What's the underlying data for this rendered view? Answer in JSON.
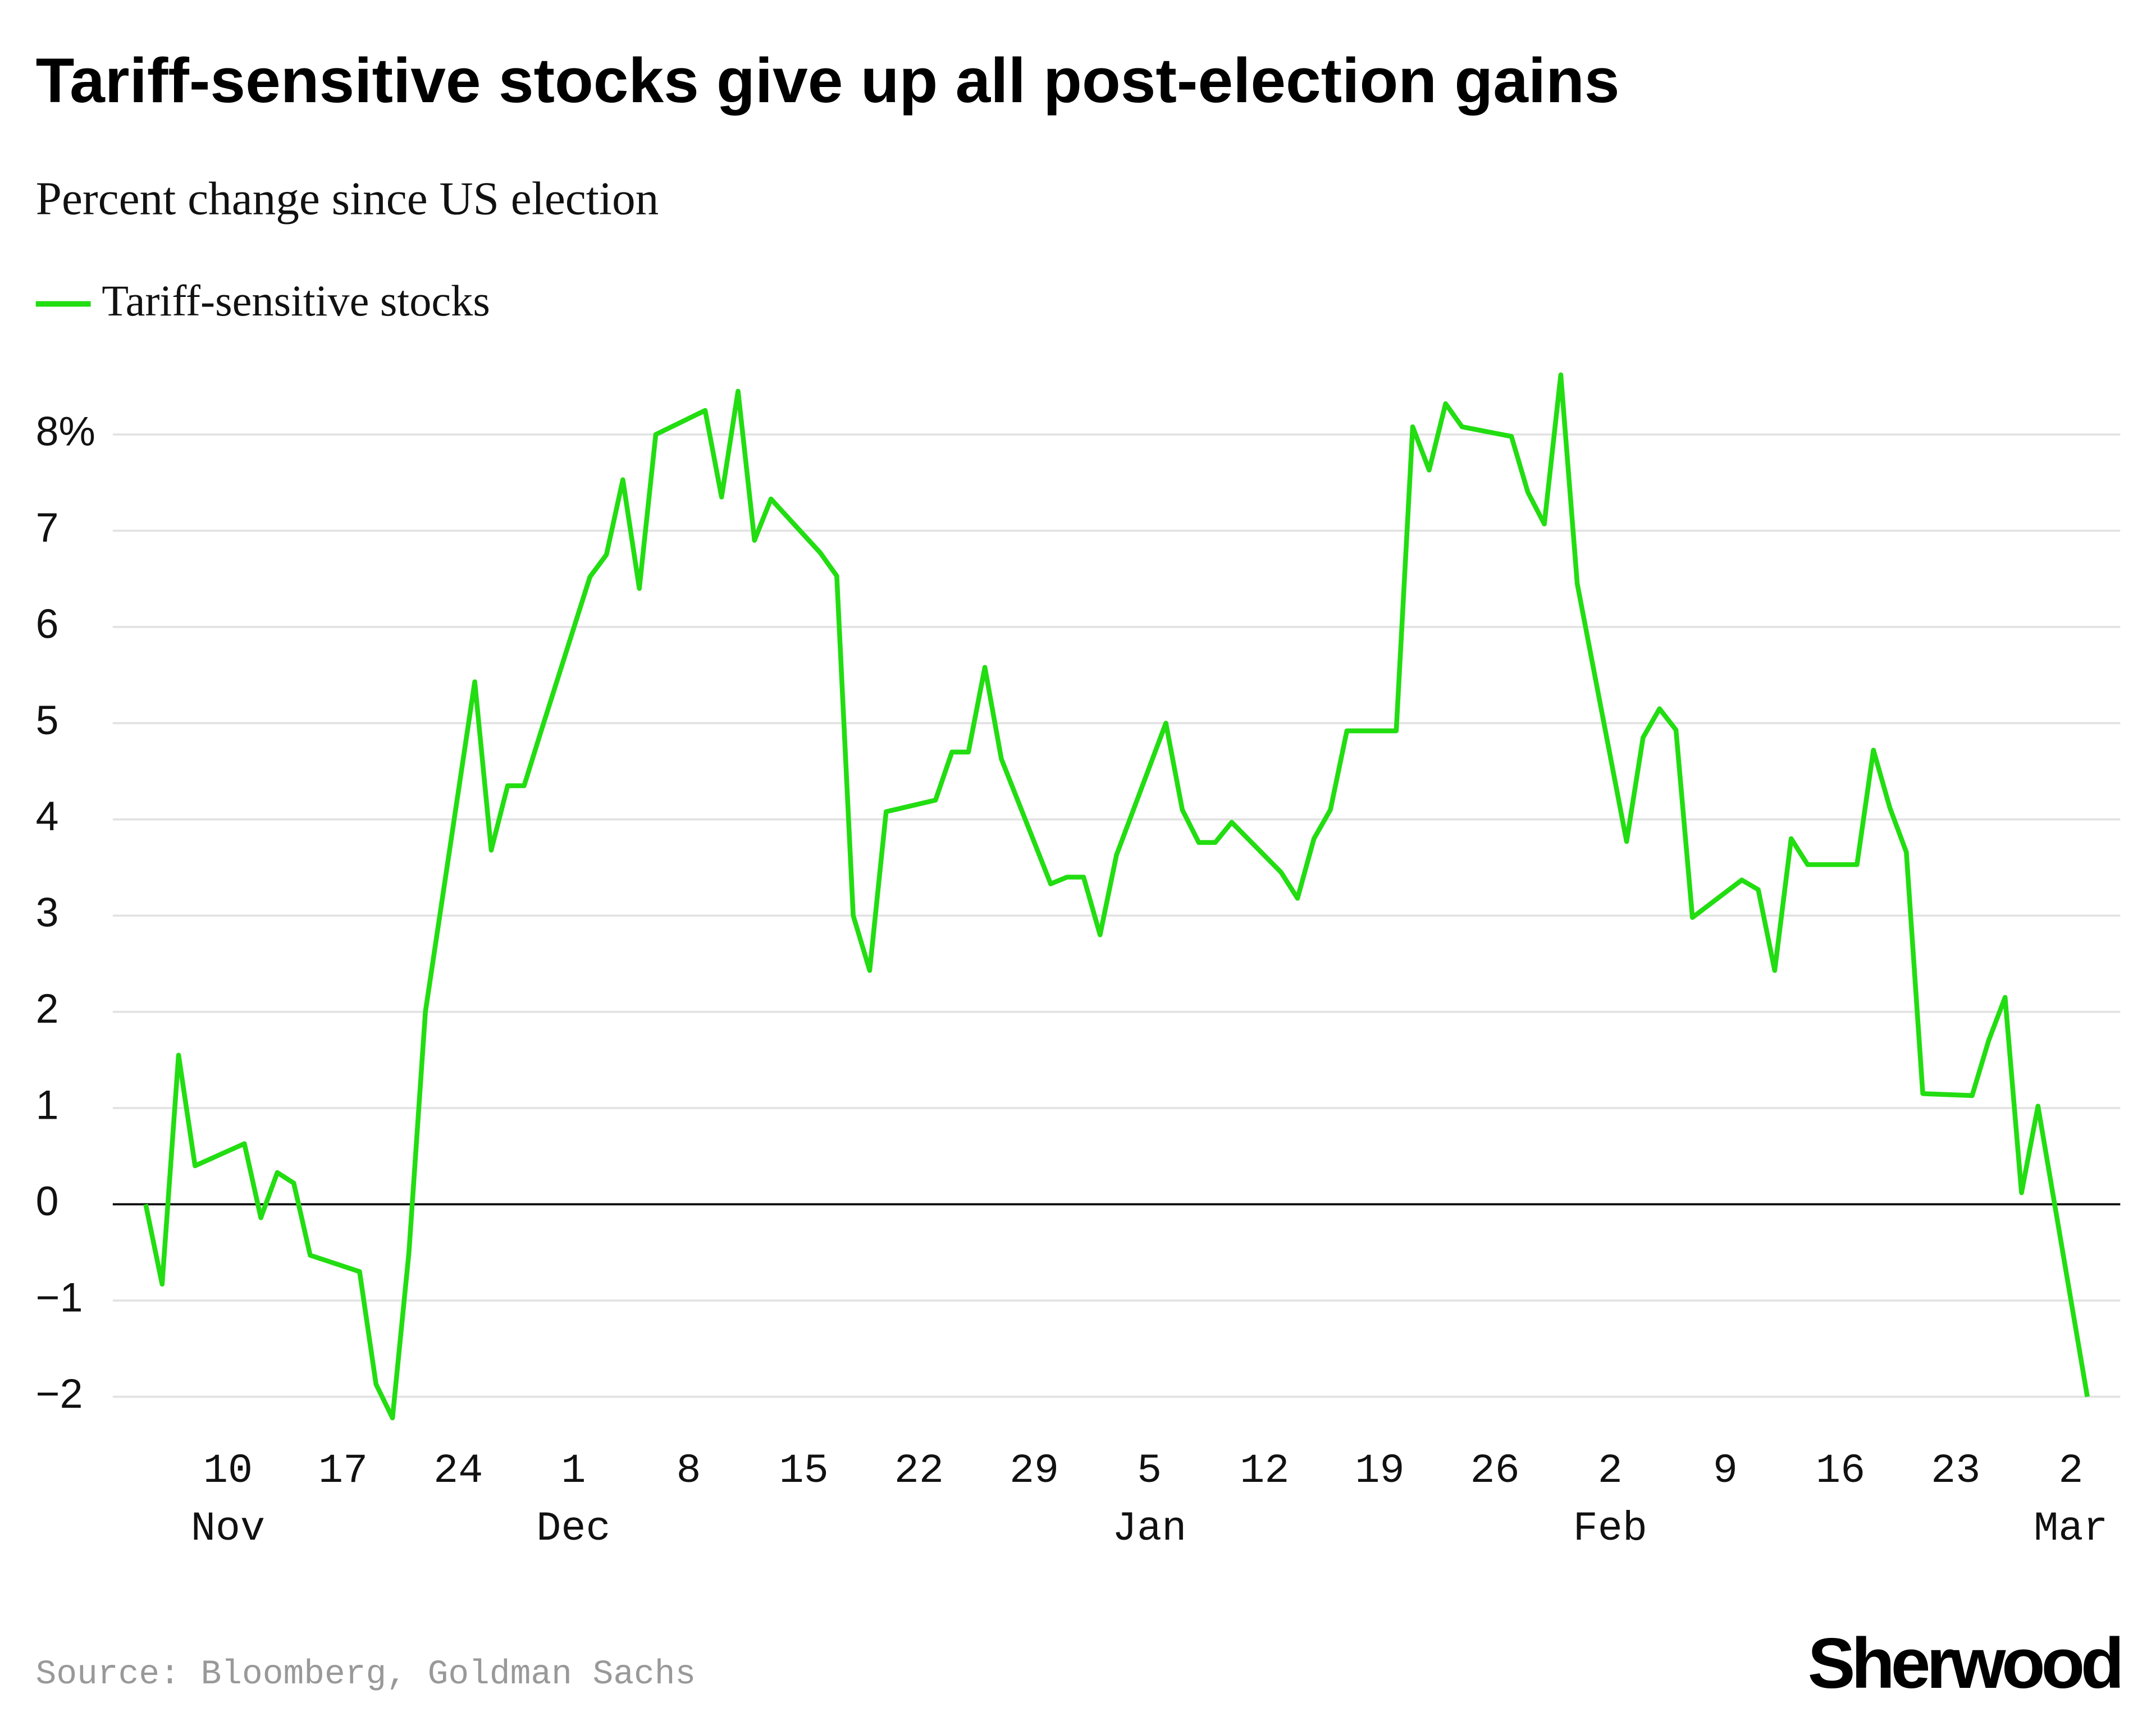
{
  "chart_data": {
    "type": "line",
    "title": "Tariff-sensitive stocks give up all post-election gains",
    "subtitle": "Percent change since US election",
    "source": "Source: Bloomberg, Goldman Sachs",
    "brand": "Sherwood",
    "x": [
      "11-05",
      "11-06",
      "11-07",
      "11-08",
      "11-11",
      "11-12",
      "11-13",
      "11-14",
      "11-15",
      "11-18",
      "11-19",
      "11-20",
      "11-21",
      "11-22",
      "11-25",
      "11-26",
      "11-27",
      "11-28",
      "11-29",
      "12-02",
      "12-03",
      "12-04",
      "12-05",
      "12-06",
      "12-09",
      "12-10",
      "12-11",
      "12-12",
      "12-13",
      "12-16",
      "12-17",
      "12-18",
      "12-19",
      "12-20",
      "12-23",
      "12-24",
      "12-25",
      "12-26",
      "12-27",
      "12-30",
      "12-31",
      "01-01",
      "01-02",
      "01-03",
      "01-06",
      "01-07",
      "01-08",
      "01-09",
      "01-10",
      "01-13",
      "01-14",
      "01-15",
      "01-16",
      "01-17",
      "01-20",
      "01-21",
      "01-22",
      "01-23",
      "01-24",
      "01-27",
      "01-28",
      "01-29",
      "01-30",
      "01-31",
      "02-03",
      "02-04",
      "02-05",
      "02-06",
      "02-07",
      "02-10",
      "02-11",
      "02-12",
      "02-13",
      "02-14",
      "02-17",
      "02-18",
      "02-19",
      "02-20",
      "02-21",
      "02-24",
      "02-25",
      "02-26",
      "02-27",
      "02-28",
      "03-03"
    ],
    "series": [
      {
        "name": "Tariff-sensitive stocks",
        "color": "#22dd11",
        "values": [
          0,
          -0.83,
          1.55,
          0.4,
          0.63,
          -0.14,
          0.33,
          0.22,
          -0.53,
          -0.7,
          -1.87,
          -2.22,
          -0.5,
          2.0,
          5.43,
          3.68,
          4.35,
          4.35,
          4.9,
          6.52,
          6.75,
          7.53,
          6.4,
          8.0,
          8.25,
          7.35,
          8.45,
          6.9,
          7.33,
          6.77,
          6.53,
          3.0,
          2.43,
          4.08,
          4.2,
          4.7,
          4.7,
          5.58,
          4.63,
          3.33,
          3.4,
          3.4,
          2.8,
          3.63,
          5.0,
          4.1,
          3.76,
          3.76,
          3.97,
          3.45,
          3.18,
          3.8,
          4.1,
          4.92,
          4.92,
          8.08,
          7.63,
          8.32,
          8.08,
          7.98,
          7.4,
          7.07,
          8.62,
          6.45,
          3.77,
          4.85,
          5.15,
          4.93,
          2.98,
          3.37,
          3.27,
          2.43,
          3.8,
          3.53,
          3.53,
          4.72,
          4.12,
          3.66,
          1.15,
          1.13,
          1.7,
          2.15,
          0.12,
          1.02,
          -2.0
        ]
      }
    ],
    "xlim": [
      "11-03",
      "03-05"
    ],
    "xticks": [
      {
        "value": "11-10",
        "label": "10"
      },
      {
        "value": "11-17",
        "label": "17"
      },
      {
        "value": "11-24",
        "label": "24"
      },
      {
        "value": "12-01",
        "label": "1"
      },
      {
        "value": "12-08",
        "label": "8"
      },
      {
        "value": "12-15",
        "label": "15"
      },
      {
        "value": "12-22",
        "label": "22"
      },
      {
        "value": "12-29",
        "label": "29"
      },
      {
        "value": "01-05",
        "label": "5"
      },
      {
        "value": "01-12",
        "label": "12"
      },
      {
        "value": "01-19",
        "label": "19"
      },
      {
        "value": "01-26",
        "label": "26"
      },
      {
        "value": "02-02",
        "label": "2"
      },
      {
        "value": "02-09",
        "label": "9"
      },
      {
        "value": "02-16",
        "label": "16"
      },
      {
        "value": "02-23",
        "label": "23"
      },
      {
        "value": "03-02",
        "label": "2"
      }
    ],
    "month_labels": [
      {
        "value": "11-10",
        "label": "Nov"
      },
      {
        "value": "12-01",
        "label": "Dec"
      },
      {
        "value": "01-05",
        "label": "Jan"
      },
      {
        "value": "02-02",
        "label": "Feb"
      },
      {
        "value": "03-02",
        "label": "Mar"
      }
    ],
    "ylim": [
      -2.4,
      8.7
    ],
    "yticks": [
      {
        "value": -2,
        "label": "−2"
      },
      {
        "value": -1,
        "label": "−1"
      },
      0,
      1,
      2,
      3,
      4,
      5,
      6,
      7,
      {
        "value": 8,
        "label": "8%"
      }
    ],
    "grid": true
  }
}
